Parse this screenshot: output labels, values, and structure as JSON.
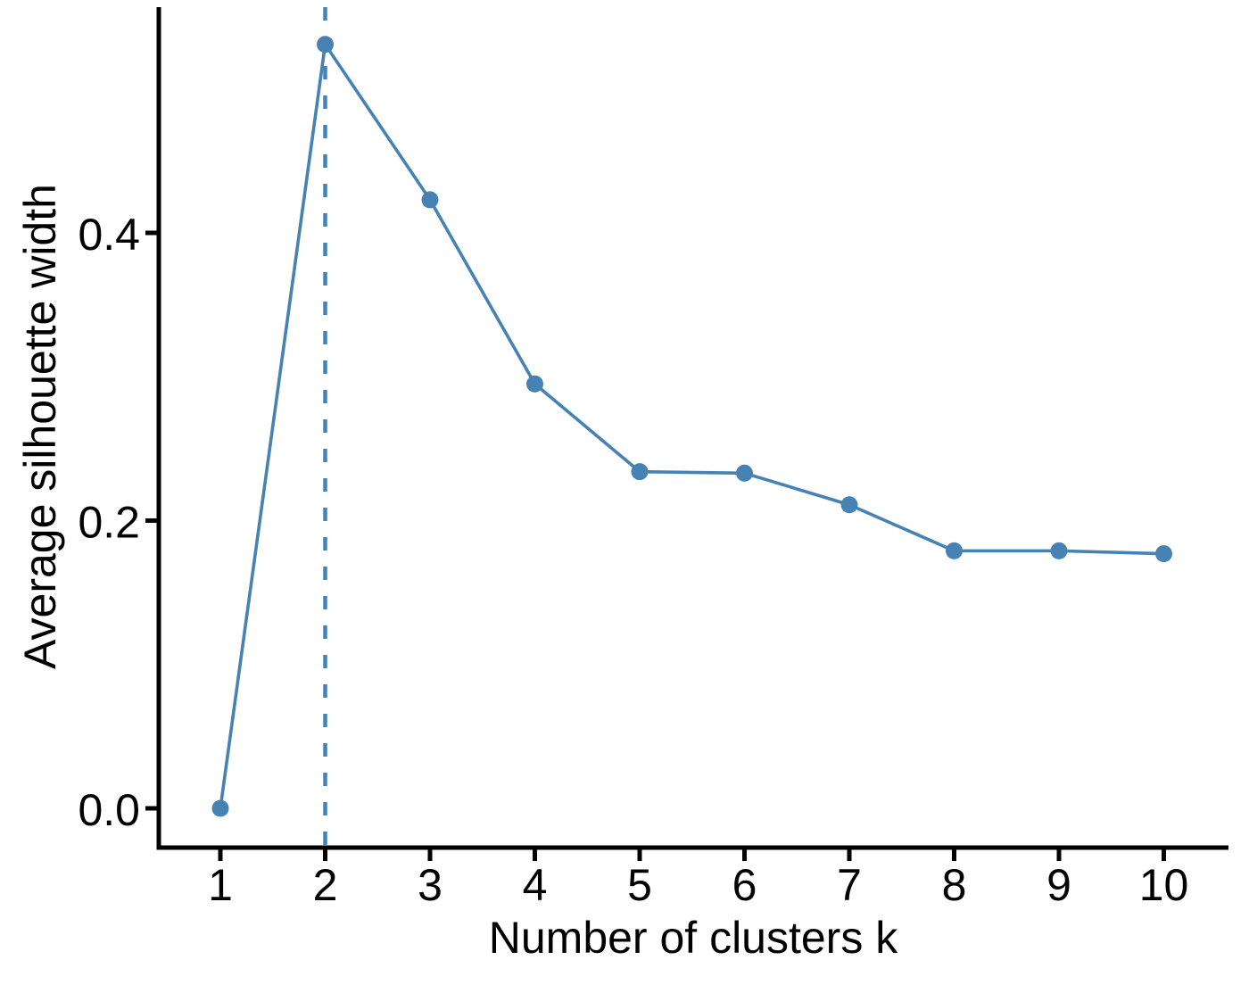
{
  "chart_data": {
    "type": "line",
    "title": "",
    "xlabel": "Number of clusters k",
    "ylabel": "Average silhouette width",
    "x": [
      1,
      2,
      3,
      4,
      5,
      6,
      7,
      8,
      9,
      10
    ],
    "values": [
      0.0,
      0.531,
      0.423,
      0.295,
      0.234,
      0.233,
      0.211,
      0.179,
      0.179,
      0.177
    ],
    "series_name": "Average silhouette width",
    "x_tick_labels": [
      "1",
      "2",
      "3",
      "4",
      "5",
      "6",
      "7",
      "8",
      "9",
      "10"
    ],
    "y_ticks": [
      0.0,
      0.2,
      0.4
    ],
    "y_tick_labels": [
      "0.0",
      "0.2",
      "0.4"
    ],
    "xlim": [
      0.55,
      10.45
    ],
    "ylim": [
      -0.027,
      0.557
    ],
    "vline_x": 2,
    "optimal_k_note": "dashed vertical line at k = 2",
    "grid": false,
    "legend_position": "none",
    "colors": {
      "series": "#4682B4",
      "marker": "#4682B4",
      "vline": "#4682B4",
      "axis": "#000000",
      "text": "#000000",
      "background": "#FFFFFF"
    }
  }
}
